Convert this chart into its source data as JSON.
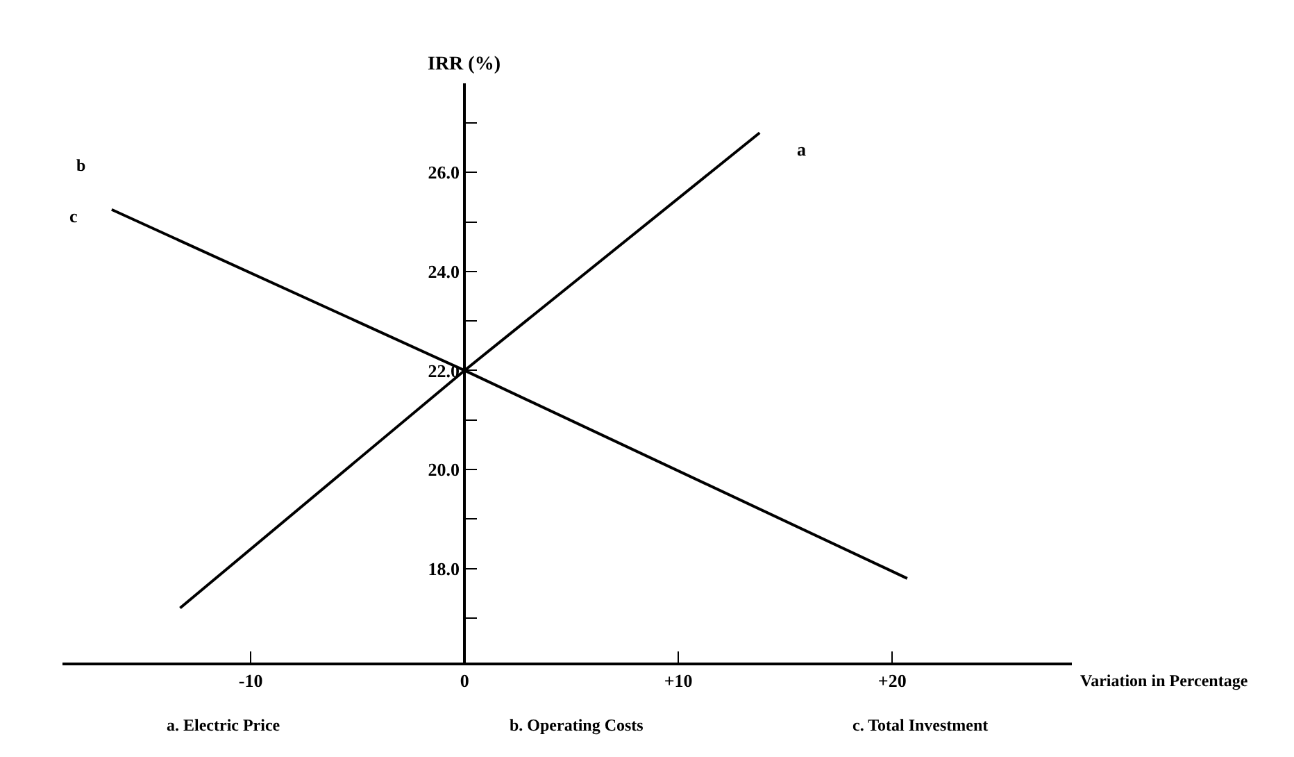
{
  "chart_data": {
    "type": "line",
    "xlabel": "Variation in Percentage",
    "ylabel": "IRR (%)",
    "series": [
      {
        "name": "a",
        "color": "#000000",
        "x": [
          -13.3,
          0,
          13.8
        ],
        "values": [
          17.2,
          22.0,
          26.8
        ]
      },
      {
        "name": "c",
        "color": "#000000",
        "x": [
          -16.5,
          0,
          20.7
        ],
        "values": [
          25.25,
          22.0,
          17.8
        ]
      }
    ],
    "annotations": [
      "b",
      "a. Electric Price",
      "b. Operating Costs",
      "c. Total Investment"
    ],
    "xlim": [
      -18.8,
      28.4
    ],
    "ylim": [
      16.1,
      27.8
    ],
    "xticks": [
      {
        "value": -10,
        "label": "-10"
      },
      {
        "value": 0,
        "label": "0"
      },
      {
        "value": 10,
        "label": "+10"
      },
      {
        "value": 20,
        "label": "+20"
      }
    ],
    "yticks": [
      {
        "value": 17,
        "label": null
      },
      {
        "value": 18,
        "label": "18.0"
      },
      {
        "value": 19,
        "label": null
      },
      {
        "value": 20,
        "label": "20.0"
      },
      {
        "value": 21,
        "label": null
      },
      {
        "value": 22,
        "label": "22.0"
      },
      {
        "value": 23,
        "label": null
      },
      {
        "value": 24,
        "label": "24.0"
      },
      {
        "value": 25,
        "label": null
      },
      {
        "value": 26,
        "label": "26.0"
      },
      {
        "value": 27,
        "label": null
      }
    ],
    "legend": false,
    "marker": "none",
    "line_style": "solid"
  }
}
